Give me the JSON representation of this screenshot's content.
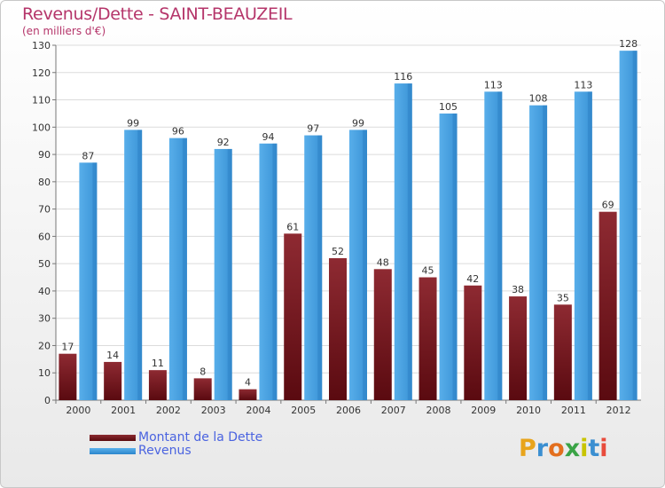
{
  "title": "Revenus/Dette - SAINT-BEAUZEIL",
  "subtitle": "(en milliers d'€)",
  "chart_data": {
    "type": "bar",
    "categories": [
      "2000",
      "2001",
      "2002",
      "2003",
      "2004",
      "2005",
      "2006",
      "2007",
      "2008",
      "2009",
      "2010",
      "2011",
      "2012"
    ],
    "series": [
      {
        "name": "Montant de la Dette",
        "values": [
          17,
          14,
          11,
          8,
          4,
          61,
          52,
          48,
          45,
          42,
          38,
          35,
          69
        ],
        "color": "#7a1c22"
      },
      {
        "name": "Revenus",
        "values": [
          87,
          99,
          96,
          92,
          94,
          97,
          99,
          116,
          105,
          113,
          108,
          113,
          128
        ],
        "color": "#3a97dc"
      }
    ],
    "ylim": [
      0,
      130
    ],
    "yticks": [
      0,
      10,
      20,
      30,
      40,
      50,
      60,
      70,
      80,
      90,
      100,
      110,
      120,
      130
    ],
    "grid": true
  },
  "legend": {
    "items": [
      {
        "label": "Montant de la Dette",
        "color": "#6a0f14"
      },
      {
        "label": "Revenus",
        "color": "#3a97dc"
      }
    ]
  },
  "logo": {
    "text": "Proxiti",
    "colors": [
      "#e8a41c",
      "#3b8fd1",
      "#e36f1e",
      "#3aa346",
      "#c8c400",
      "#3b8fd1",
      "#e84b3c"
    ]
  }
}
